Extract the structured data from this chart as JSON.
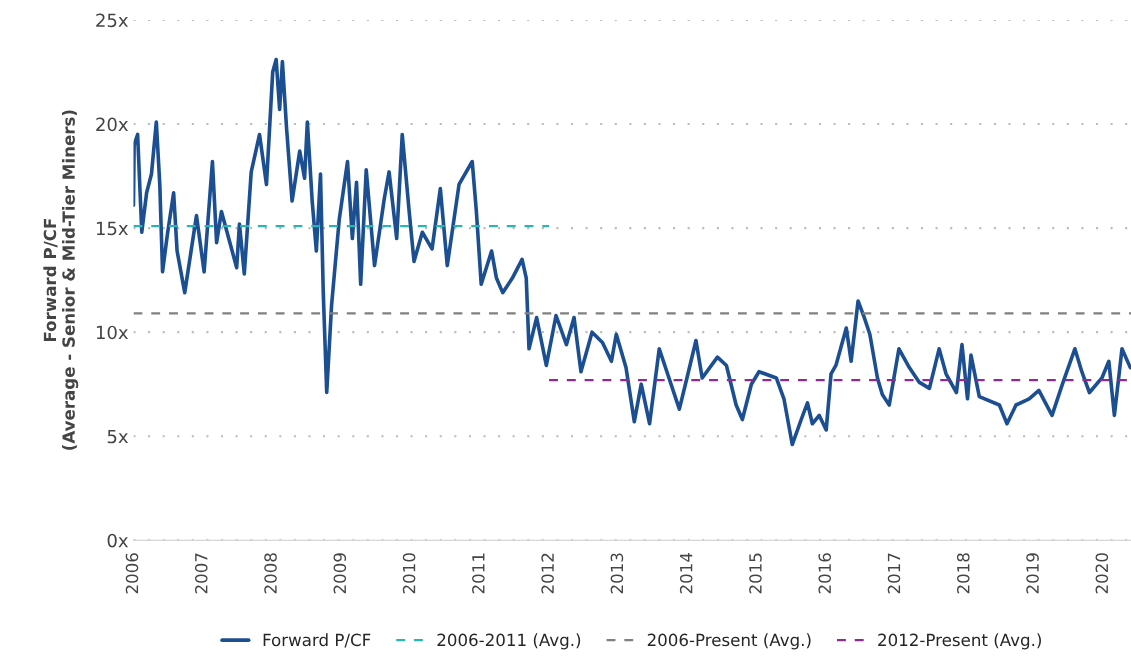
{
  "chart_data": {
    "type": "line",
    "ylabel": "Forward P/CF\n(Average - Senior & Mid-Tier Miners)",
    "xlim": [
      2006,
      2020.4
    ],
    "xticks": [
      2006,
      2007,
      2008,
      2009,
      2010,
      2011,
      2012,
      2013,
      2014,
      2015,
      2016,
      2017,
      2018,
      2019,
      2020
    ],
    "ylim": [
      0,
      25
    ],
    "yticks": [
      {
        "value": 0,
        "label": "0x"
      },
      {
        "value": 5,
        "label": "5x"
      },
      {
        "value": 10,
        "label": "10x"
      },
      {
        "value": 15,
        "label": "15x"
      },
      {
        "value": 20,
        "label": "20x"
      },
      {
        "value": 25,
        "label": "25x"
      }
    ],
    "grid": "y",
    "legend": "bottom",
    "series": [
      {
        "name": "Forward P/CF",
        "color": "#1c4f91",
        "line_style": "solid",
        "x": [
          2006.0,
          2006.01,
          2006.06,
          2006.12,
          2006.19,
          2006.26,
          2006.33,
          2006.38,
          2006.42,
          2006.49,
          2006.58,
          2006.63,
          2006.74,
          2006.91,
          2007.02,
          2007.14,
          2007.2,
          2007.27,
          2007.49,
          2007.53,
          2007.6,
          2007.7,
          2007.82,
          2007.92,
          2008.01,
          2008.06,
          2008.11,
          2008.15,
          2008.21,
          2008.29,
          2008.4,
          2008.47,
          2008.51,
          2008.58,
          2008.64,
          2008.7,
          2008.74,
          2008.79,
          2008.86,
          2008.97,
          2009.09,
          2009.16,
          2009.22,
          2009.28,
          2009.36,
          2009.48,
          2009.62,
          2009.69,
          2009.8,
          2009.88,
          2009.98,
          2010.05,
          2010.17,
          2010.31,
          2010.43,
          2010.53,
          2010.7,
          2010.89,
          2010.95,
          2011.02,
          2011.17,
          2011.24,
          2011.33,
          2011.47,
          2011.61,
          2011.67,
          2011.71,
          2011.82,
          2011.96,
          2012.1,
          2012.25,
          2012.36,
          2012.46,
          2012.62,
          2012.77,
          2012.9,
          2012.97,
          2013.11,
          2013.23,
          2013.33,
          2013.45,
          2013.59,
          2013.71,
          2013.88,
          2013.99,
          2014.12,
          2014.21,
          2014.43,
          2014.56,
          2014.7,
          2014.79,
          2014.92,
          2015.03,
          2015.28,
          2015.39,
          2015.51,
          2015.65,
          2015.73,
          2015.8,
          2015.9,
          2016.0,
          2016.07,
          2016.14,
          2016.29,
          2016.36,
          2016.46,
          2016.55,
          2016.63,
          2016.74,
          2016.81,
          2016.91,
          2017.05,
          2017.2,
          2017.34,
          2017.49,
          2017.63,
          2017.73,
          2017.88,
          2017.96,
          2018.04,
          2018.09,
          2018.21,
          2018.5,
          2018.61,
          2018.74,
          2018.93,
          2019.07,
          2019.26,
          2019.41,
          2019.59,
          2019.69,
          2019.8,
          2019.98,
          2020.08,
          2020.16,
          2020.27,
          2020.39
        ],
        "values": [
          16.1,
          19.0,
          19.5,
          14.8,
          16.7,
          17.6,
          20.1,
          17.1,
          12.9,
          14.7,
          16.7,
          13.9,
          11.9,
          15.6,
          12.9,
          18.2,
          14.3,
          15.8,
          13.1,
          15.2,
          12.8,
          17.7,
          19.5,
          17.1,
          22.5,
          23.1,
          20.7,
          23.0,
          19.8,
          16.3,
          18.7,
          17.4,
          20.1,
          16.3,
          13.9,
          17.6,
          11.9,
          7.1,
          11.3,
          15.4,
          18.2,
          14.5,
          17.2,
          12.3,
          17.8,
          13.2,
          16.4,
          17.7,
          14.5,
          19.5,
          15.8,
          13.4,
          14.8,
          14.0,
          16.9,
          13.2,
          17.1,
          18.2,
          15.8,
          12.3,
          13.9,
          12.6,
          11.9,
          12.6,
          13.5,
          12.6,
          9.2,
          10.7,
          8.4,
          10.8,
          9.4,
          10.7,
          8.1,
          10.0,
          9.5,
          8.6,
          9.9,
          8.3,
          5.7,
          7.5,
          5.6,
          9.2,
          8.0,
          6.3,
          7.8,
          9.6,
          7.8,
          8.8,
          8.4,
          6.5,
          5.8,
          7.5,
          8.1,
          7.8,
          6.8,
          4.6,
          5.9,
          6.6,
          5.6,
          6.0,
          5.3,
          8.0,
          8.4,
          10.2,
          8.6,
          11.5,
          10.7,
          9.9,
          7.8,
          7.0,
          6.5,
          9.2,
          8.3,
          7.6,
          7.3,
          9.2,
          8.0,
          7.1,
          9.4,
          6.8,
          8.9,
          6.9,
          6.5,
          5.6,
          6.5,
          6.8,
          7.2,
          6.0,
          7.5,
          9.2,
          8.1,
          7.1,
          7.8,
          8.6,
          6.0,
          9.2,
          8.3
        ]
      },
      {
        "name": "2006-2011 (Avg.)",
        "color": "#2bb5b0",
        "line_style": "dashed",
        "x": [
          2006,
          2012
        ],
        "values": [
          15.1,
          15.1
        ]
      },
      {
        "name": "2006-Present (Avg.)",
        "color": "#808080",
        "line_style": "dashed",
        "x": [
          2006,
          2020.4
        ],
        "values": [
          10.9,
          10.9
        ]
      },
      {
        "name": "2012-Present (Avg.)",
        "color": "#8b2c8e",
        "line_style": "dashed",
        "x": [
          2012,
          2020.4
        ],
        "values": [
          7.7,
          7.7
        ]
      }
    ]
  }
}
